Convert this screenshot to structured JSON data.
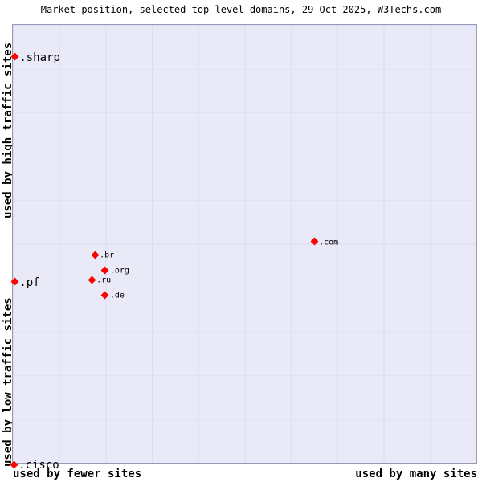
{
  "title": "Market position, selected top level domains, 29 Oct 2025, W3Techs.com",
  "axes": {
    "y_top": "used by high traffic sites",
    "y_bottom": "used by low traffic sites",
    "x_left": "used by fewer sites",
    "x_right": "used by many sites"
  },
  "colors": {
    "plot_bg": "#e9e9f8",
    "grid": "#dcdcf0",
    "border": "#9a9ab8",
    "marker": "#ff0000"
  },
  "chart_data": {
    "type": "scatter",
    "title": "Market position, selected top level domains, 29 Oct 2025, W3Techs.com",
    "xlabel_left": "used by fewer sites",
    "xlabel_right": "used by many sites",
    "ylabel_top": "used by high traffic sites",
    "ylabel_bottom": "used by low traffic sites",
    "grid": true,
    "legend": "none",
    "axis_units": "percent of plot area, x from left, y from top",
    "points": [
      {
        "label": ".sharp",
        "x_pct": 0.4,
        "y_pct": 7.3,
        "size": "large"
      },
      {
        "label": ".pf",
        "x_pct": 0.4,
        "y_pct": 58.7,
        "size": "large"
      },
      {
        "label": ".cisco",
        "x_pct": 0.2,
        "y_pct": 100.4,
        "size": "large"
      },
      {
        "label": ".com",
        "x_pct": 65.0,
        "y_pct": 49.5,
        "size": "small"
      },
      {
        "label": ".br",
        "x_pct": 17.7,
        "y_pct": 52.5,
        "size": "small"
      },
      {
        "label": ".org",
        "x_pct": 19.9,
        "y_pct": 56.0,
        "size": "small"
      },
      {
        "label": ".ru",
        "x_pct": 17.0,
        "y_pct": 58.2,
        "size": "small"
      },
      {
        "label": ".de",
        "x_pct": 19.9,
        "y_pct": 61.7,
        "size": "small"
      }
    ]
  }
}
